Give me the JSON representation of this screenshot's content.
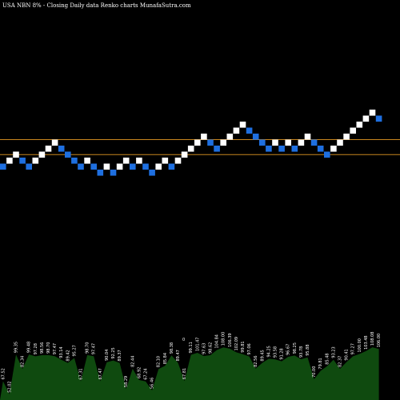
{
  "header": {
    "left": "USA NBN  8% -  Closing Daily data  Renko  charts MunafaSutra.com",
    "right": "Renko charts MunafaSutra.com"
  },
  "chart_data": {
    "type": "renko",
    "title": "USA NBN 8% - Closing Daily data Renko charts MunafaSutra.com",
    "colors": {
      "up": "#ffffff",
      "down": "#1e6fe0",
      "reference_line": "#c8861e",
      "volume": "#0f4a0f"
    },
    "reference_lines": [
      {
        "level": 13
      },
      {
        "level": 8
      }
    ],
    "bricks": [
      {
        "level": 4,
        "dir": "down"
      },
      {
        "level": 6,
        "dir": "up"
      },
      {
        "level": 8,
        "dir": "up"
      },
      {
        "level": 6,
        "dir": "down"
      },
      {
        "level": 4,
        "dir": "down"
      },
      {
        "level": 6,
        "dir": "up"
      },
      {
        "level": 8,
        "dir": "up"
      },
      {
        "level": 10,
        "dir": "up"
      },
      {
        "level": 12,
        "dir": "up"
      },
      {
        "level": 10,
        "dir": "down"
      },
      {
        "level": 8,
        "dir": "down"
      },
      {
        "level": 6,
        "dir": "down"
      },
      {
        "level": 4,
        "dir": "down"
      },
      {
        "level": 6,
        "dir": "up"
      },
      {
        "level": 4,
        "dir": "down"
      },
      {
        "level": 2,
        "dir": "down"
      },
      {
        "level": 4,
        "dir": "up"
      },
      {
        "level": 2,
        "dir": "down"
      },
      {
        "level": 4,
        "dir": "up"
      },
      {
        "level": 6,
        "dir": "up"
      },
      {
        "level": 4,
        "dir": "down"
      },
      {
        "level": 6,
        "dir": "up"
      },
      {
        "level": 4,
        "dir": "down"
      },
      {
        "level": 2,
        "dir": "down"
      },
      {
        "level": 4,
        "dir": "up"
      },
      {
        "level": 6,
        "dir": "up"
      },
      {
        "level": 4,
        "dir": "down"
      },
      {
        "level": 6,
        "dir": "up"
      },
      {
        "level": 8,
        "dir": "up"
      },
      {
        "level": 10,
        "dir": "up"
      },
      {
        "level": 12,
        "dir": "up"
      },
      {
        "level": 14,
        "dir": "up"
      },
      {
        "level": 12,
        "dir": "down"
      },
      {
        "level": 10,
        "dir": "down"
      },
      {
        "level": 12,
        "dir": "up"
      },
      {
        "level": 14,
        "dir": "up"
      },
      {
        "level": 16,
        "dir": "up"
      },
      {
        "level": 18,
        "dir": "up"
      },
      {
        "level": 16,
        "dir": "down"
      },
      {
        "level": 14,
        "dir": "down"
      },
      {
        "level": 12,
        "dir": "down"
      },
      {
        "level": 10,
        "dir": "down"
      },
      {
        "level": 12,
        "dir": "up"
      },
      {
        "level": 10,
        "dir": "down"
      },
      {
        "level": 12,
        "dir": "up"
      },
      {
        "level": 10,
        "dir": "down"
      },
      {
        "level": 12,
        "dir": "up"
      },
      {
        "level": 14,
        "dir": "up"
      },
      {
        "level": 12,
        "dir": "down"
      },
      {
        "level": 10,
        "dir": "down"
      },
      {
        "level": 8,
        "dir": "down"
      },
      {
        "level": 10,
        "dir": "up"
      },
      {
        "level": 12,
        "dir": "up"
      },
      {
        "level": 14,
        "dir": "up"
      },
      {
        "level": 16,
        "dir": "up"
      },
      {
        "level": 18,
        "dir": "up"
      },
      {
        "level": 20,
        "dir": "up"
      },
      {
        "level": 22,
        "dir": "up"
      },
      {
        "level": 20,
        "dir": "down"
      }
    ],
    "volume_labels": [
      "67.52",
      "52.02",
      "99.35",
      "82.34",
      "99.48",
      "97.28",
      "98.56",
      "98.70",
      "97.47",
      "93.14",
      "89.42",
      "95.27",
      "67.31",
      "98.70",
      "97.47",
      "67.47",
      "90.04",
      "92.25",
      "89.37",
      "58.29",
      "82.44",
      "68.92",
      "67.24",
      "56.46",
      "82.10",
      "85.84",
      "98.38",
      "89.47",
      "67.81",
      "99.11",
      "101.47",
      "97.63",
      "98.62",
      "104.84",
      "108.00",
      "106.39",
      "102.09",
      "99.81",
      "97.06",
      "82.56",
      "89.45",
      "94.25",
      "93.58",
      "91.28",
      "96.67",
      "98.25",
      "93.78",
      "95.88",
      "70.00",
      "79.81",
      "85.48",
      "93.23",
      "82.37",
      "90.41",
      "97.27",
      "100.00",
      "103.48",
      "108.08",
      "106.00"
    ],
    "volume_marker": "0"
  }
}
